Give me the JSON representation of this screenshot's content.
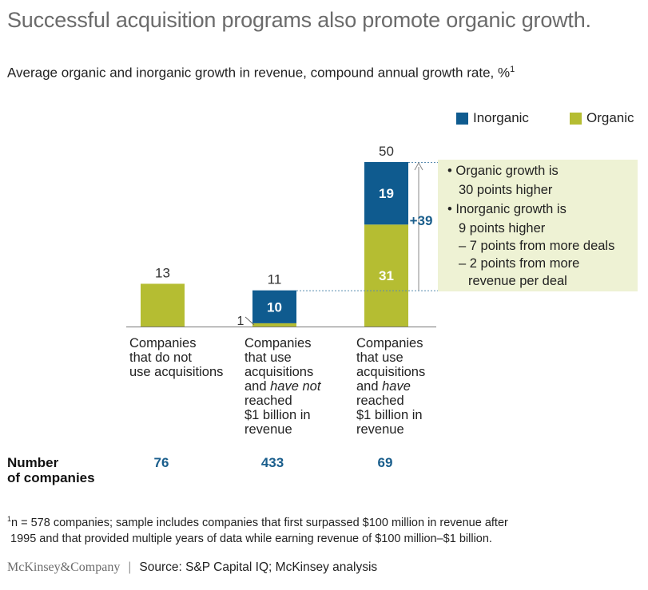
{
  "title": "Successful acquisition programs also promote organic growth.",
  "subtitle": "Average organic and inorganic growth in revenue, compound annual growth rate, %",
  "subtitle_footnote_marker": "1",
  "colors": {
    "inorganic": "#0f5b8f",
    "organic": "#b5bd32",
    "callout_bg": "#eef2d4",
    "count": "#1a5e8c"
  },
  "chart_data": {
    "type": "bar",
    "stacked": true,
    "categories": [
      "Companies that do not use acquisitions",
      "Companies that use acquisitions and have not reached $1 billion in revenue",
      "Companies that use acquisitions and have reached $1 billion in revenue"
    ],
    "series": [
      {
        "name": "Organic",
        "values": [
          13,
          1,
          31
        ]
      },
      {
        "name": "Inorganic",
        "values": [
          0,
          10,
          19
        ]
      }
    ],
    "totals": [
      13,
      11,
      50
    ],
    "segment_labels": [
      "",
      "10",
      "19",
      "31"
    ],
    "ylim": [
      0,
      50
    ],
    "legend": [
      "Inorganic",
      "Organic"
    ],
    "legend_position": "top-right",
    "grid": false,
    "annotation": {
      "difference_label": "+39"
    }
  },
  "categories_display": [
    [
      "Companies",
      "that do not",
      "use acquisitions"
    ],
    [
      "Companies",
      "that use",
      "acquisitions",
      "and |have not|",
      "reached",
      "$1 billion in",
      "revenue"
    ],
    [
      "Companies",
      "that use",
      "acquisitions",
      "and |have|",
      "reached",
      "$1 billion in",
      "revenue"
    ]
  ],
  "callout": [
    "• Organic growth is",
    "30 points higher",
    "• Inorganic growth is",
    "9 points higher",
    "– 7 points from more deals",
    "– 2 points from more",
    "revenue per deal"
  ],
  "companies": {
    "header_line1": "Number",
    "header_line2": "of companies",
    "counts": [
      "76",
      "433",
      "69"
    ]
  },
  "footnote": {
    "marker": "1",
    "line1": "n = 578 companies; sample includes companies that first surpassed $100 million in revenue after",
    "line2": "1995 and that provided multiple years of data while earning revenue of $100 million–$1 billion."
  },
  "source": {
    "brand": "McKinsey&Company",
    "text": "Source: S&P Capital IQ; McKinsey analysis"
  }
}
